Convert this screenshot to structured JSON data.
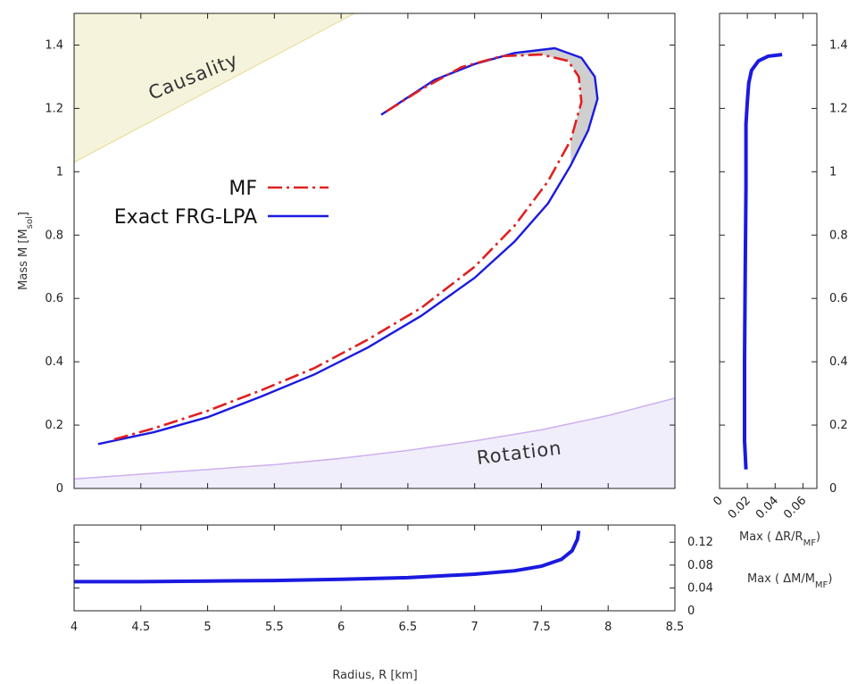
{
  "chart_data": [
    {
      "id": "main",
      "type": "line",
      "xlabel": "Radius, R [km]",
      "ylabel": "Mass M [M",
      "ylabel_sub": "sol",
      "ylabel_suffix": "]",
      "xlim": [
        4,
        8.5
      ],
      "ylim": [
        0,
        1.5
      ],
      "xticks": [
        "4",
        "4.5",
        "5",
        "5.5",
        "6",
        "6.5",
        "7",
        "7.5",
        "8",
        "8.5"
      ],
      "xtick_values": [
        4,
        4.5,
        5,
        5.5,
        6,
        6.5,
        7,
        7.5,
        8,
        8.5
      ],
      "yticks": [
        "0",
        "0.2",
        "0.4",
        "0.6",
        "0.8",
        "1",
        "1.2",
        "1.4"
      ],
      "ytick_values": [
        0,
        0.2,
        0.4,
        0.6,
        0.8,
        1,
        1.2,
        1.4
      ],
      "legend_position": "center-left",
      "series": [
        {
          "name": "MF",
          "color": "#e02020",
          "style": "dash-dot",
          "x": [
            4.3,
            4.6,
            5.0,
            5.4,
            5.8,
            6.2,
            6.6,
            7.0,
            7.3,
            7.55,
            7.72,
            7.8,
            7.78,
            7.7,
            7.5,
            7.2,
            6.9,
            6.6,
            6.32
          ],
          "y": [
            0.155,
            0.19,
            0.245,
            0.31,
            0.38,
            0.47,
            0.57,
            0.7,
            0.83,
            0.97,
            1.1,
            1.22,
            1.3,
            1.35,
            1.37,
            1.365,
            1.33,
            1.26,
            1.185
          ]
        },
        {
          "name": "Exact FRG-LPA",
          "color": "#1a1ae0",
          "style": "solid",
          "x": [
            4.18,
            4.6,
            5.0,
            5.4,
            5.8,
            6.2,
            6.6,
            7.0,
            7.3,
            7.55,
            7.72,
            7.85,
            7.92,
            7.9,
            7.8,
            7.6,
            7.3,
            7.0,
            6.7,
            6.3
          ],
          "y": [
            0.14,
            0.178,
            0.225,
            0.29,
            0.36,
            0.445,
            0.545,
            0.665,
            0.78,
            0.9,
            1.02,
            1.13,
            1.23,
            1.3,
            1.36,
            1.39,
            1.375,
            1.34,
            1.29,
            1.18
          ]
        }
      ],
      "regions": [
        {
          "name": "Causality",
          "color": "#f6f3dc",
          "edge": "#e8df9c"
        },
        {
          "name": "Rotation",
          "color": "#f1eefb",
          "edge": "#cdb0ee"
        }
      ],
      "region_boundaries": {
        "causality": {
          "x": [
            4.0,
            6.1
          ],
          "y": [
            1.03,
            1.5
          ]
        },
        "rotation": {
          "x": [
            4.0,
            4.5,
            5.0,
            5.5,
            6.0,
            6.5,
            7.0,
            7.5,
            8.0,
            8.5
          ],
          "y": [
            0.03,
            0.045,
            0.06,
            0.075,
            0.095,
            0.12,
            0.15,
            0.185,
            0.23,
            0.285
          ]
        }
      },
      "shaded_between_curves": {
        "color": "#cfcfcf"
      }
    },
    {
      "id": "right",
      "type": "line",
      "xlabel": "Max ( ΔR/R",
      "xlabel_sub": "MF",
      "xlabel_suffix": ")",
      "xlim": [
        0,
        0.07
      ],
      "ylim": [
        0,
        1.5
      ],
      "xticks": [
        "0",
        "0.02",
        "0.04",
        "0.06"
      ],
      "xtick_values": [
        0,
        0.02,
        0.04,
        0.06
      ],
      "yticks": [
        "0",
        "0.2",
        "0.4",
        "0.6",
        "0.8",
        "1",
        "1.2",
        "1.4"
      ],
      "ytick_values": [
        0,
        0.2,
        0.4,
        0.6,
        0.8,
        1,
        1.2,
        1.4
      ],
      "series": [
        {
          "color": "#1a1ae0",
          "x": [
            0.019,
            0.018,
            0.018,
            0.0185,
            0.019,
            0.019,
            0.02,
            0.021,
            0.023,
            0.028,
            0.035,
            0.045
          ],
          "y": [
            0.06,
            0.15,
            0.4,
            0.7,
            0.95,
            1.15,
            1.22,
            1.28,
            1.32,
            1.35,
            1.365,
            1.37
          ]
        }
      ]
    },
    {
      "id": "bottom",
      "type": "line",
      "ylabel": "Max ( ΔM/M",
      "ylabel_sub": "MF",
      "ylabel_suffix": ")",
      "xlim": [
        4,
        8.5
      ],
      "ylim": [
        0,
        0.15
      ],
      "xticks": [
        "4",
        "4.5",
        "5",
        "5.5",
        "6",
        "6.5",
        "7",
        "7.5",
        "8",
        "8.5"
      ],
      "xtick_values": [
        4,
        4.5,
        5,
        5.5,
        6,
        6.5,
        7,
        7.5,
        8,
        8.5
      ],
      "yticks": [
        "0",
        "0.04",
        "0.08",
        "0.12"
      ],
      "ytick_values": [
        0,
        0.04,
        0.08,
        0.12
      ],
      "series": [
        {
          "color": "#1a1ae0",
          "x": [
            4.0,
            4.5,
            5.0,
            5.5,
            6.0,
            6.5,
            7.0,
            7.3,
            7.5,
            7.65,
            7.73,
            7.77,
            7.78
          ],
          "y": [
            0.051,
            0.051,
            0.052,
            0.053,
            0.055,
            0.058,
            0.064,
            0.07,
            0.078,
            0.09,
            0.105,
            0.125,
            0.14
          ]
        }
      ]
    }
  ]
}
